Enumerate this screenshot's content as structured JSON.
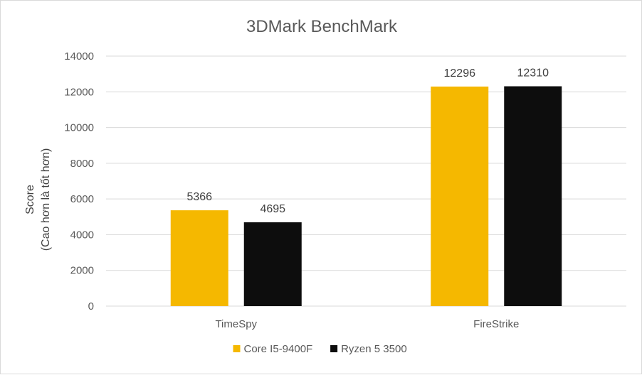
{
  "chart_data": {
    "type": "bar",
    "title": "3DMark BenchMark",
    "ylabel_line1": "Score",
    "ylabel_line2": "(Cao hơn là tốt hơn)",
    "xlabel": "",
    "categories": [
      "TimeSpy",
      "FireStrike"
    ],
    "series": [
      {
        "name": "Core I5-9400F",
        "color": "#F5B800",
        "values": [
          5366,
          12296
        ]
      },
      {
        "name": "Ryzen 5 3500",
        "color": "#0D0D0D",
        "values": [
          4695,
          12310
        ]
      }
    ],
    "ylim": [
      0,
      14000
    ],
    "yticks": [
      "0",
      "2000",
      "4000",
      "6000",
      "8000",
      "10000",
      "12000",
      "14000"
    ],
    "grid": true,
    "legend_position": "bottom"
  }
}
